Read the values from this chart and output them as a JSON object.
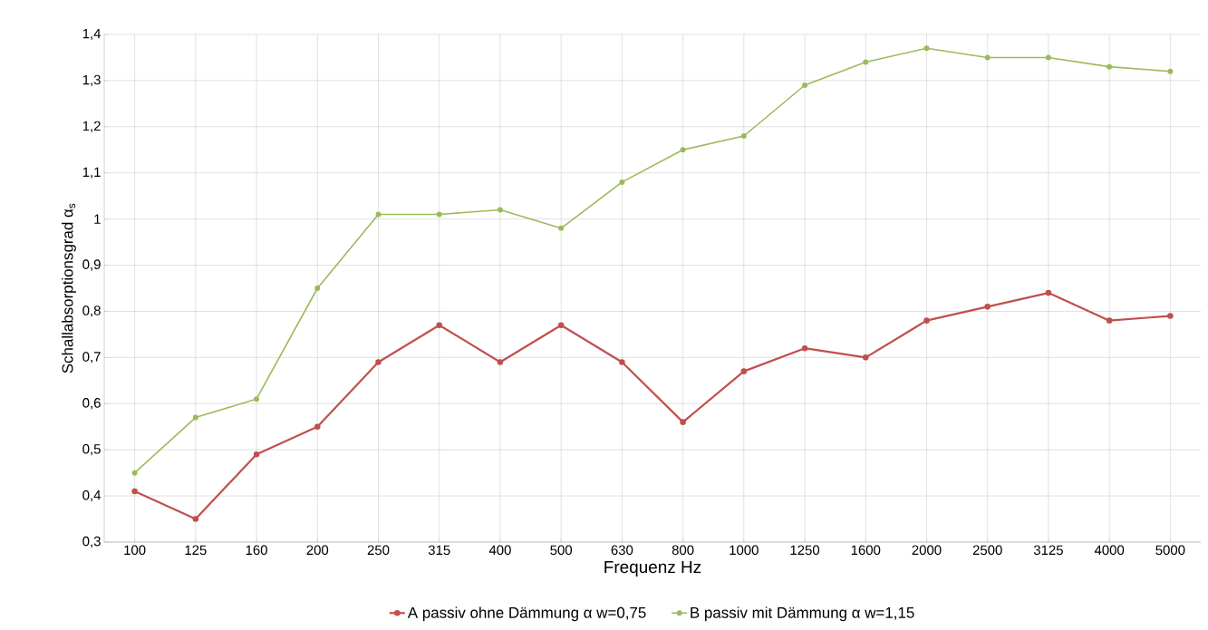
{
  "chart_data": {
    "type": "line",
    "xlabel": "Frequenz Hz",
    "ylabel": "Schallabsorptionsgrad α$_{s}$",
    "categories": [
      "100",
      "125",
      "160",
      "200",
      "250",
      "315",
      "400",
      "500",
      "630",
      "800",
      "1000",
      "1250",
      "1600",
      "2000",
      "2500",
      "3125",
      "4000",
      "5000"
    ],
    "series": [
      {
        "name": "A passiv ohne Dämmung α w=0,75",
        "color": "#c0504d",
        "values": [
          0.41,
          0.35,
          0.49,
          0.55,
          0.69,
          0.77,
          0.69,
          0.77,
          0.69,
          0.56,
          0.67,
          0.72,
          0.7,
          0.78,
          0.81,
          0.84,
          0.78,
          0.79
        ]
      },
      {
        "name": "B passiv mit Dämmung α w=1,15",
        "color": "#9bbb59",
        "values": [
          0.45,
          0.57,
          0.61,
          0.85,
          1.01,
          1.01,
          1.02,
          0.98,
          1.08,
          1.15,
          1.18,
          1.29,
          1.34,
          1.37,
          1.35,
          1.35,
          1.33,
          1.32
        ]
      }
    ],
    "ylim": [
      0.3,
      1.4
    ],
    "yticks": [
      {
        "value": 0.3,
        "label": "0,3"
      },
      {
        "value": 0.4,
        "label": "0,4"
      },
      {
        "value": 0.5,
        "label": "0,5"
      },
      {
        "value": 0.6,
        "label": "0,6"
      },
      {
        "value": 0.7,
        "label": "0,7"
      },
      {
        "value": 0.8,
        "label": "0,8"
      },
      {
        "value": 0.9,
        "label": "0,9"
      },
      {
        "value": 1,
        "label": "1"
      },
      {
        "value": 1.1,
        "label": "1,1"
      },
      {
        "value": 1.2,
        "label": "1,2"
      },
      {
        "value": 1.3,
        "label": "1,3"
      },
      {
        "value": 1.4,
        "label": "1,4"
      }
    ],
    "grid": true,
    "legend": "bottom",
    "marker": "circle",
    "line_style": "solid"
  }
}
